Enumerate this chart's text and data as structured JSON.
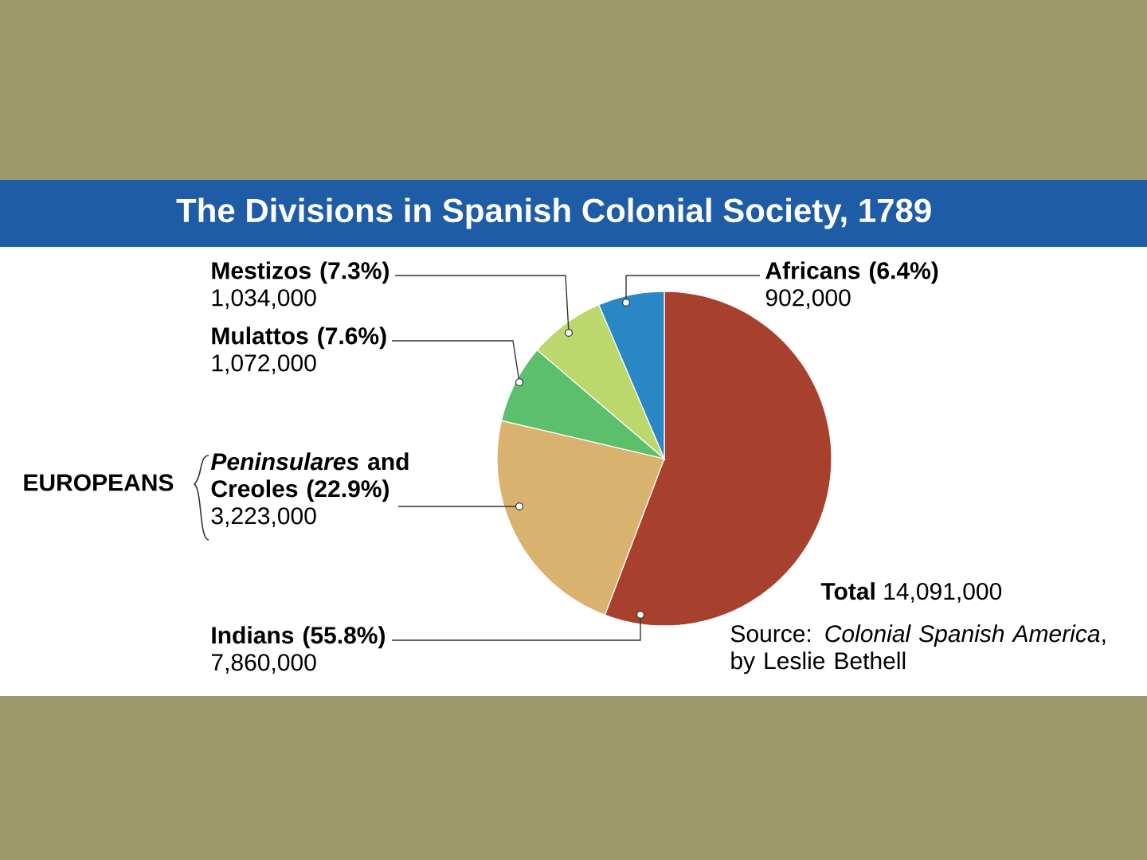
{
  "chart_data": {
    "type": "pie",
    "title": "The Divisions in Spanish Colonial Society, 1789",
    "categories": [
      "Indians (55.8%)",
      "*Peninsulares* and Creoles (22.9%)",
      "Mulattos (7.6%)",
      "Mestizos (7.3%)",
      "Africans (6.4%)"
    ],
    "values": [
      7860000,
      3223000,
      1072000,
      1034000,
      902000
    ],
    "value_labels": [
      "7,860,000",
      "3,223,000",
      "1,072,000",
      "1,034,000",
      "902,000"
    ],
    "colors": [
      "#a8402e",
      "#d8b26e",
      "#5cbf6c",
      "#bcd86c",
      "#2b86c6"
    ],
    "annotations": [
      "EUROPEANS",
      "**Total** 14,091,000",
      "Source: *Colonial Spanish America*, by Leslie Bethell"
    ]
  }
}
